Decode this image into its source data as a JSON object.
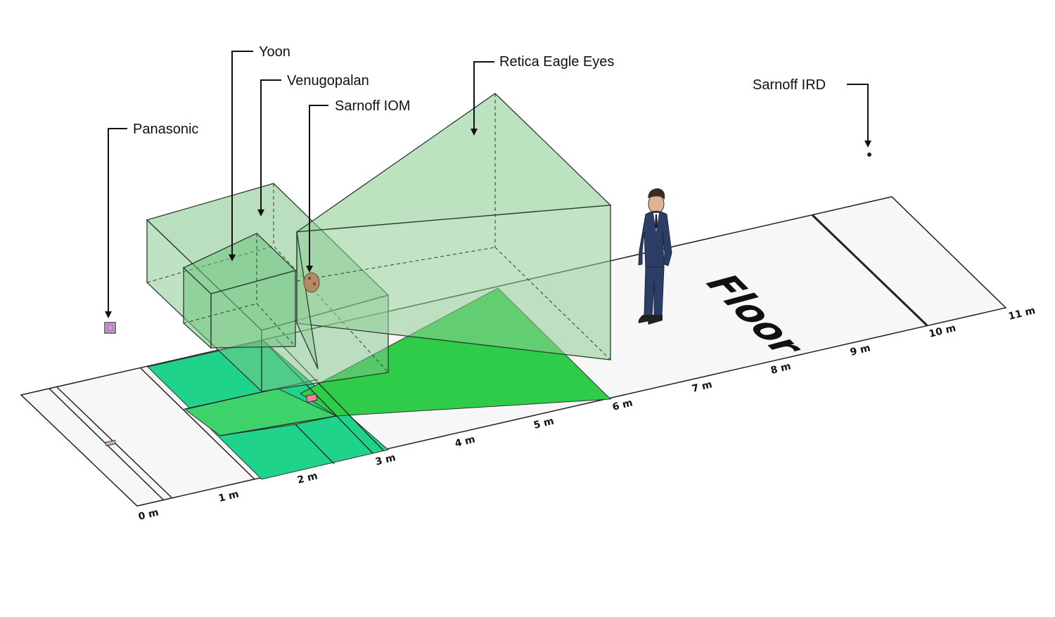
{
  "labels": {
    "yoon": "Yoon",
    "venugopalan": "Venugopalan",
    "sarnoff_iom": "Sarnoff IOM",
    "panasonic": "Panasonic",
    "retica": "Retica Eagle Eyes",
    "sarnoff_ird": "Sarnoff IRD",
    "floor": "Floor"
  },
  "ticks": [
    "0 m",
    "1 m",
    "2 m",
    "3 m",
    "4 m",
    "5 m",
    "6 m",
    "7 m",
    "8 m",
    "9 m",
    "10 m",
    "11 m"
  ],
  "colors": {
    "volume_fill": "#7fc58a",
    "floor_dark_green": "#2ecc48",
    "floor_teal": "#1fd38a",
    "floor_light_green": "#3ed36a",
    "floor_base": "#f7f7f7",
    "suit": "#2c3e66"
  }
}
